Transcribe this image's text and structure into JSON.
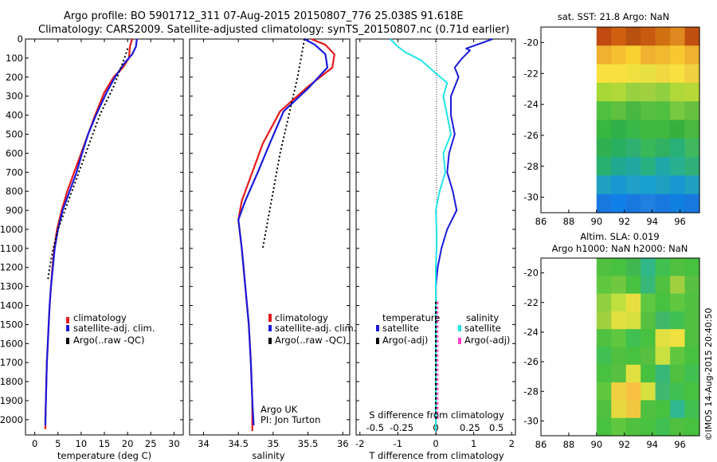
{
  "title_line1": "Argo profile: BO 5901712_311 07-Aug-2015 20150807_776 25.038S 91.618E",
  "title_line2": "Climatology: CARS2009. Satellite-adjusted climatology: synTS_20150807.nc (0.71d earlier)",
  "watermark": "©IMOS 14-Aug-2015 20:40:50",
  "colors": {
    "clim": "#e41a1c",
    "sat": "#1a1adb",
    "argo": "#000000",
    "sat_diff": "#22e5e5",
    "argo_diff": "#ff3ccd"
  },
  "chart_data": [
    {
      "id": "temperature",
      "type": "line",
      "xlabel": "temperature (deg C)",
      "ylabel": "",
      "xlim": [
        -2,
        32
      ],
      "ylim": [
        2080,
        0
      ],
      "xticks": [
        0,
        5,
        10,
        15,
        20,
        25,
        30
      ],
      "xtick_labels": [
        "0",
        "5",
        "10",
        "15",
        "20",
        "25",
        "30"
      ],
      "yticks": [
        0,
        100,
        200,
        300,
        400,
        500,
        600,
        700,
        800,
        900,
        1000,
        1100,
        1200,
        1300,
        1400,
        1500,
        1600,
        1700,
        1800,
        1900,
        2000
      ],
      "ytick_labels": [
        "0",
        "100",
        "200",
        "300",
        "400",
        "500",
        "600",
        "700",
        "800",
        "900",
        "1000",
        "1100",
        "1200",
        "1300",
        "1400",
        "1500",
        "1600",
        "1700",
        "1800",
        "1900",
        "2000"
      ],
      "legend": [
        "climatology",
        "satellite-adj. clim.",
        "Argo(..raw -QC)"
      ],
      "series": [
        {
          "name": "climatology",
          "color": "clim",
          "width": 2.2,
          "points": [
            [
              21,
              0
            ],
            [
              20.5,
              40
            ],
            [
              20.3,
              100
            ],
            [
              19,
              150
            ],
            [
              17,
              200
            ],
            [
              15,
              280
            ],
            [
              13,
              400
            ],
            [
              11.5,
              500
            ],
            [
              10,
              600
            ],
            [
              8.5,
              700
            ],
            [
              7,
              800
            ],
            [
              5.8,
              900
            ],
            [
              4.8,
              1000
            ],
            [
              4.2,
              1100
            ],
            [
              3.8,
              1200
            ],
            [
              3.5,
              1300
            ],
            [
              3.2,
              1400
            ],
            [
              3,
              1500
            ],
            [
              2.8,
              1600
            ],
            [
              2.6,
              1700
            ],
            [
              2.5,
              1800
            ],
            [
              2.4,
              1900
            ],
            [
              2.3,
              2000
            ],
            [
              2.3,
              2050
            ]
          ]
        },
        {
          "name": "satellite-adj. clim.",
          "color": "sat",
          "width": 2.2,
          "points": [
            [
              22,
              0
            ],
            [
              21.8,
              40
            ],
            [
              21,
              80
            ],
            [
              19.2,
              130
            ],
            [
              17.3,
              200
            ],
            [
              15.5,
              280
            ],
            [
              13.2,
              400
            ],
            [
              11.5,
              500
            ],
            [
              10.2,
              600
            ],
            [
              9,
              700
            ],
            [
              7.5,
              800
            ],
            [
              6,
              900
            ],
            [
              5,
              1000
            ],
            [
              4.3,
              1100
            ],
            [
              3.9,
              1200
            ],
            [
              3.5,
              1300
            ],
            [
              3.2,
              1400
            ],
            [
              3,
              1500
            ],
            [
              2.8,
              1600
            ],
            [
              2.6,
              1700
            ],
            [
              2.5,
              1800
            ],
            [
              2.4,
              1900
            ],
            [
              2.3,
              2000
            ],
            [
              2.3,
              2030
            ]
          ]
        },
        {
          "name": "Argo(..raw -QC)",
          "color": "argo",
          "width": 2,
          "dash": "2 3",
          "points": [
            [
              20,
              50
            ],
            [
              19.5,
              90
            ],
            [
              17,
              250
            ],
            [
              14,
              400
            ],
            [
              11,
              600
            ],
            [
              8,
              800
            ],
            [
              6.5,
              900
            ],
            [
              5,
              1000
            ],
            [
              4,
              1100
            ],
            [
              3.2,
              1200
            ],
            [
              2.8,
              1270
            ]
          ]
        }
      ]
    },
    {
      "id": "salinity",
      "type": "line",
      "xlabel": "salinity",
      "ylabel": "",
      "xlim": [
        33.8,
        36.1
      ],
      "ylim": [
        2080,
        0
      ],
      "xticks": [
        34,
        34.5,
        35,
        35.5,
        36
      ],
      "xtick_labels": [
        "34",
        "34.5",
        "35",
        "35.5",
        "36"
      ],
      "yticks": [],
      "ytick_labels": [],
      "legend": [
        "climatology",
        "satellite-adj. clim.",
        "Argo(..raw -QC)"
      ],
      "series": [
        {
          "name": "climatology",
          "color": "clim",
          "width": 2.2,
          "points": [
            [
              35.55,
              0
            ],
            [
              35.75,
              30
            ],
            [
              35.88,
              80
            ],
            [
              35.85,
              150
            ],
            [
              35.5,
              250
            ],
            [
              35.1,
              380
            ],
            [
              34.85,
              550
            ],
            [
              34.7,
              700
            ],
            [
              34.55,
              850
            ],
            [
              34.5,
              950
            ],
            [
              34.55,
              1100
            ],
            [
              34.6,
              1300
            ],
            [
              34.65,
              1500
            ],
            [
              34.68,
              1700
            ],
            [
              34.7,
              1900
            ],
            [
              34.7,
              2060
            ]
          ]
        },
        {
          "name": "satellite-adj. clim.",
          "color": "sat",
          "width": 2.2,
          "points": [
            [
              35.45,
              0
            ],
            [
              35.6,
              30
            ],
            [
              35.75,
              80
            ],
            [
              35.78,
              150
            ],
            [
              35.5,
              260
            ],
            [
              35.15,
              380
            ],
            [
              34.95,
              550
            ],
            [
              34.78,
              700
            ],
            [
              34.6,
              850
            ],
            [
              34.5,
              950
            ],
            [
              34.55,
              1100
            ],
            [
              34.6,
              1300
            ],
            [
              34.65,
              1500
            ],
            [
              34.68,
              1700
            ],
            [
              34.7,
              1900
            ],
            [
              34.72,
              2030
            ]
          ]
        },
        {
          "name": "Argo(..raw -QC)",
          "color": "argo",
          "width": 2,
          "dash": "2 3",
          "points": [
            [
              35.45,
              0
            ],
            [
              35.35,
              200
            ],
            [
              35.1,
              600
            ],
            [
              34.85,
              1100
            ]
          ]
        }
      ],
      "annotation_line1": "Argo UK",
      "annotation_line2": "PI: Jon Turton"
    },
    {
      "id": "difference",
      "type": "line",
      "xlabel": "T difference from climatology",
      "xlabel_top": "S difference from climatology",
      "xlim": [
        -2.1,
        2.1
      ],
      "ylim": [
        2080,
        0
      ],
      "xticks": [
        -2,
        -1,
        0,
        1,
        2
      ],
      "xtick_labels": [
        "-2",
        "-1",
        "0",
        "1",
        "2"
      ],
      "top_ticks": [
        -0.5,
        -0.25,
        0,
        0.25,
        0.5
      ],
      "top_tick_labels": [
        "-0.5",
        "-0.25",
        "0",
        "0.25",
        "0.5"
      ],
      "top_tick_xpos": [
        -1.6,
        -0.9,
        0,
        0.9,
        1.6
      ],
      "legend_temperature": "temperature",
      "legend_salinity": "salinity",
      "legend_items_temp": [
        "satellite",
        "Argo(-adj)"
      ],
      "legend_items_sal": [
        "satellite",
        "Argo(-adj)"
      ],
      "series": [
        {
          "name": "satellite T",
          "color": "sat",
          "width": 2,
          "points": [
            [
              1.5,
              0
            ],
            [
              0.8,
              50
            ],
            [
              0.9,
              60
            ],
            [
              0.7,
              100
            ],
            [
              0.5,
              150
            ],
            [
              0.6,
              200
            ],
            [
              0.4,
              300
            ],
            [
              0.4,
              400
            ],
            [
              0.5,
              500
            ],
            [
              0.35,
              600
            ],
            [
              0.3,
              700
            ],
            [
              0.45,
              800
            ],
            [
              0.55,
              900
            ],
            [
              0.3,
              1000
            ],
            [
              0.15,
              1100
            ],
            [
              0.05,
              1200
            ],
            [
              0,
              1300
            ],
            [
              0,
              2060
            ]
          ]
        },
        {
          "name": "satellite S",
          "color": "sat_diff",
          "width": 2,
          "points": [
            [
              -1.2,
              0
            ],
            [
              -1,
              40
            ],
            [
              -0.8,
              70
            ],
            [
              -0.4,
              110
            ],
            [
              0,
              180
            ],
            [
              0.3,
              230
            ],
            [
              0.2,
              300
            ],
            [
              0.3,
              400
            ],
            [
              0.4,
              500
            ],
            [
              0.2,
              600
            ],
            [
              0.25,
              700
            ],
            [
              0.1,
              800
            ],
            [
              0.0,
              900
            ],
            [
              0.02,
              1000
            ],
            [
              0.02,
              1100
            ],
            [
              0,
              1200
            ],
            [
              0,
              2060
            ]
          ]
        },
        {
          "name": "Argo T",
          "color": "argo",
          "width": 2,
          "dash": "3 3",
          "points": [
            [
              0,
              1380
            ],
            [
              0,
              2000
            ]
          ]
        },
        {
          "name": "Argo S",
          "color": "argo_diff",
          "width": 2,
          "dash": "3 3",
          "points": [
            [
              0.05,
              1380
            ],
            [
              0.05,
              2000
            ]
          ]
        }
      ]
    },
    {
      "id": "sst_map",
      "type": "heatmap",
      "title": "sat. SST: 21.8 Argo: NaN",
      "xlim": [
        86,
        97.4
      ],
      "ylim": [
        -31,
        -19
      ],
      "xticks": [
        86,
        88,
        90,
        92,
        94,
        96
      ],
      "xtick_labels": [
        "86",
        "88",
        "90",
        "92",
        "94",
        "96"
      ],
      "yticks": [
        -20,
        -22,
        -24,
        -26,
        -28,
        -30
      ],
      "ytick_labels": [
        "-20",
        "-22",
        "-24",
        "-26",
        "-28",
        "-30"
      ],
      "data_x_range": [
        90,
        97.4
      ],
      "rows_top_to_bottom": [
        [
          "#c04a10",
          "#d06010",
          "#b85010",
          "#c85a10",
          "#d07010",
          "#e08820",
          "#c05010"
        ],
        [
          "#f0b030",
          "#f5c030",
          "#f8d030",
          "#f0b030",
          "#f2b830",
          "#f8c830",
          "#f0b030"
        ],
        [
          "#f8e040",
          "#f8e040",
          "#f0e040",
          "#e8e040",
          "#f0d840",
          "#f8e040",
          "#f0d040"
        ],
        [
          "#a8d838",
          "#b0d838",
          "#98d040",
          "#a0d040",
          "#90d040",
          "#b0d838",
          "#b8d838"
        ],
        [
          "#50c040",
          "#60c040",
          "#48b840",
          "#58c040",
          "#50c040",
          "#78c840",
          "#68c040"
        ],
        [
          "#38b840",
          "#30b048",
          "#38b848",
          "#40b840",
          "#40b840",
          "#38b040",
          "#48b840"
        ],
        [
          "#30b050",
          "#28b060",
          "#30b070",
          "#38b858",
          "#30b060",
          "#28b078",
          "#40b860"
        ],
        [
          "#28b070",
          "#20a890",
          "#20a8a0",
          "#28b080",
          "#20a8a8",
          "#28b090",
          "#30b078"
        ],
        [
          "#20a0c0",
          "#1898d0",
          "#20a0c8",
          "#18a0d0",
          "#20a0c0",
          "#1898d0",
          "#20a0c0"
        ],
        [
          "#1878e0",
          "#1080e8",
          "#1878e0",
          "#2080e0",
          "#1878e0",
          "#1080e0",
          "#1878e0"
        ]
      ]
    },
    {
      "id": "sla_map",
      "type": "heatmap",
      "title_line1": "Altim. SLA: 0.019",
      "title_line2": "Argo h1000: NaN h2000: NaN",
      "xlim": [
        86,
        97.4
      ],
      "ylim": [
        -31,
        -19
      ],
      "xticks": [
        86,
        88,
        90,
        92,
        94,
        96
      ],
      "xtick_labels": [
        "86",
        "88",
        "90",
        "92",
        "94",
        "96"
      ],
      "yticks": [
        -20,
        -22,
        -24,
        -26,
        -28,
        -30
      ],
      "ytick_labels": [
        "-20",
        "-22",
        "-24",
        "-26",
        "-28",
        "-30"
      ],
      "data_x_range": [
        90,
        97.4
      ],
      "rows_top_to_bottom": [
        [
          "#50c040",
          "#48c040",
          "#40b850",
          "#30b888",
          "#40c050",
          "#50c040",
          "#48c040"
        ],
        [
          "#60c840",
          "#70c840",
          "#48c040",
          "#38b878",
          "#50c040",
          "#a0d040",
          "#58c040"
        ],
        [
          "#90d040",
          "#c0e040",
          "#e8e040",
          "#60c840",
          "#48c040",
          "#60c840",
          "#50c040"
        ],
        [
          "#a0d040",
          "#e0e040",
          "#d8e040",
          "#58c040",
          "#40b868",
          "#40c050",
          "#50c040"
        ],
        [
          "#50c040",
          "#60c840",
          "#40c050",
          "#48c040",
          "#e0e040",
          "#f0e040",
          "#50c040"
        ],
        [
          "#40c050",
          "#50c040",
          "#48c040",
          "#58c040",
          "#c8e040",
          "#60c840",
          "#48c040"
        ],
        [
          "#48c040",
          "#58c040",
          "#e0e040",
          "#48c040",
          "#38b878",
          "#50c040",
          "#40c050"
        ],
        [
          "#60c840",
          "#f0d040",
          "#f8c040",
          "#d8e040",
          "#40b870",
          "#40c050",
          "#48c040"
        ],
        [
          "#50c040",
          "#e8d840",
          "#f0c840",
          "#50c040",
          "#48c040",
          "#30b890",
          "#40c050"
        ],
        [
          "#48c040",
          "#60c840",
          "#50c040",
          "#48c040",
          "#40c050",
          "#50c040",
          "#48c040"
        ]
      ]
    }
  ]
}
